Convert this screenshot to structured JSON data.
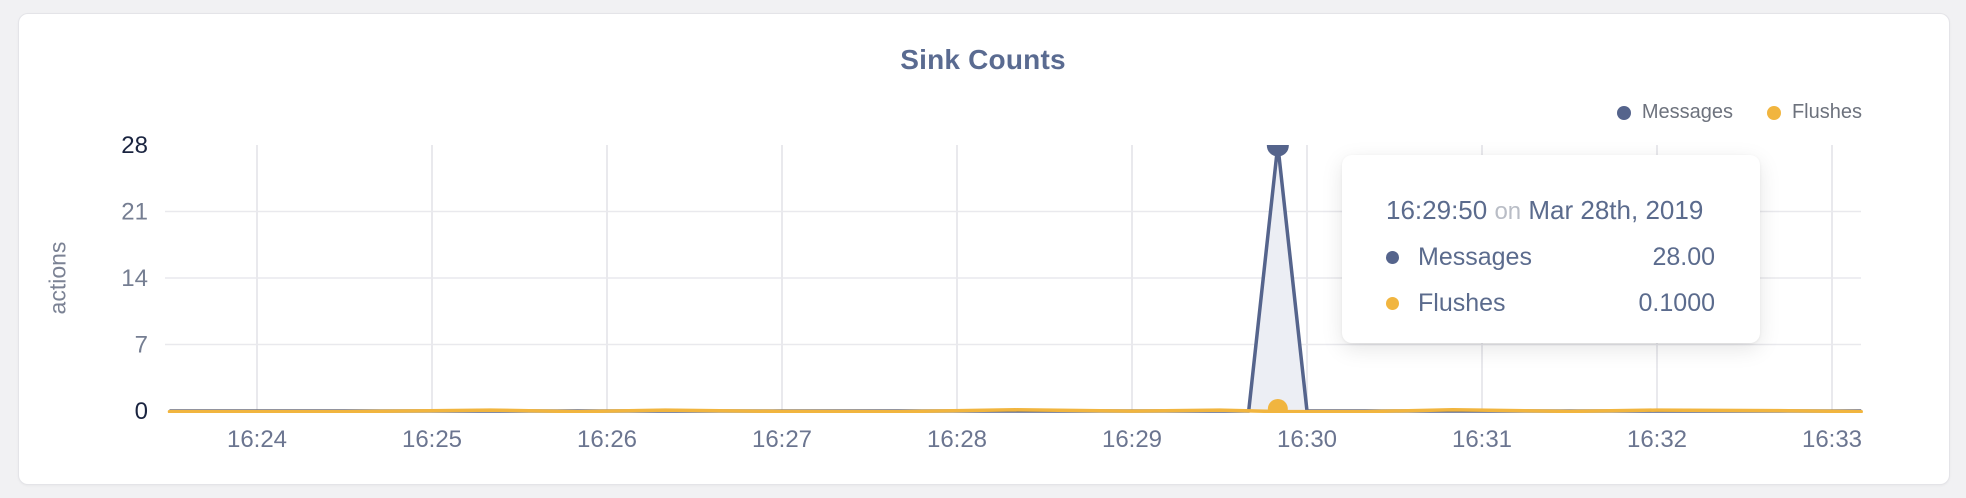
{
  "page": {
    "background": "#f1f1f3"
  },
  "card": {
    "background": "#ffffff",
    "border_color": "#e4e4e8"
  },
  "chart_data": {
    "type": "area",
    "title": "Sink Counts",
    "ylabel": "actions",
    "ylim": [
      0,
      28
    ],
    "yticks": [
      0,
      7,
      14,
      21,
      28
    ],
    "xticks": [
      "16:24",
      "16:25",
      "16:26",
      "16:27",
      "16:28",
      "16:29",
      "16:30",
      "16:31",
      "16:32",
      "16:33"
    ],
    "x_start": "16:23:30",
    "x_end": "16:33:10",
    "grid": true,
    "legend_position": "top-right",
    "series": [
      {
        "name": "Messages",
        "color": "#55648c",
        "fill": "#eceef4",
        "points": [
          [
            "16:23:30",
            0
          ],
          [
            "16:25:00",
            0
          ],
          [
            "16:26:00",
            0
          ],
          [
            "16:27:00",
            0
          ],
          [
            "16:28:00",
            0
          ],
          [
            "16:29:00",
            0
          ],
          [
            "16:29:40",
            0
          ],
          [
            "16:29:50",
            28
          ],
          [
            "16:30:00",
            0
          ],
          [
            "16:31:00",
            0
          ],
          [
            "16:32:00",
            0
          ],
          [
            "16:33:10",
            0
          ]
        ]
      },
      {
        "name": "Flushes",
        "color": "#f1b53f",
        "points": [
          [
            "16:23:30",
            0.1
          ],
          [
            "16:24:30",
            0.1
          ],
          [
            "16:25:20",
            0.25
          ],
          [
            "16:25:50",
            0.1
          ],
          [
            "16:26:20",
            0.25
          ],
          [
            "16:27:00",
            0.12
          ],
          [
            "16:27:40",
            0.1
          ],
          [
            "16:28:20",
            0.28
          ],
          [
            "16:29:00",
            0.15
          ],
          [
            "16:29:30",
            0.25
          ],
          [
            "16:29:50",
            0.1
          ],
          [
            "16:30:20",
            0.1
          ],
          [
            "16:30:50",
            0.28
          ],
          [
            "16:31:30",
            0.12
          ],
          [
            "16:32:00",
            0.25
          ],
          [
            "16:32:40",
            0.2
          ],
          [
            "16:33:10",
            0.1
          ]
        ]
      }
    ],
    "hover": {
      "x": "16:29:50",
      "crosshair": true
    }
  },
  "legend": {
    "items": [
      {
        "label": "Messages",
        "color": "#55648c"
      },
      {
        "label": "Flushes",
        "color": "#f1b53f"
      }
    ]
  },
  "tooltip": {
    "time": "16:29:50",
    "connector": "on",
    "date": "Mar 28th, 2019",
    "rows": [
      {
        "label": "Messages",
        "value": "28.00",
        "color": "#55648c"
      },
      {
        "label": "Flushes",
        "value": "0.1000",
        "color": "#f1b53f"
      }
    ]
  },
  "axis_style": {
    "tick_color_major": "#1a2440",
    "tick_color_minor": "#757e92",
    "x_label_color": "#6b7590",
    "grid_color": "#e9e9ed",
    "crosshair_color": "#d9d9df"
  }
}
